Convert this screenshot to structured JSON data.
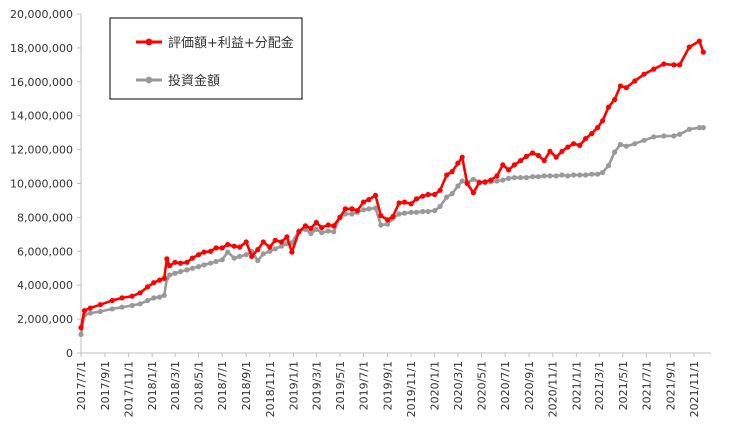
{
  "chart_data": {
    "type": "line",
    "title": "",
    "xlabel": "",
    "ylabel": "",
    "ylim": [
      0,
      20000000
    ],
    "yticks": [
      0,
      2000000,
      4000000,
      6000000,
      8000000,
      10000000,
      12000000,
      14000000,
      16000000,
      18000000,
      20000000
    ],
    "ytick_labels": [
      "0",
      "2,000,000",
      "4,000,000",
      "6,000,000",
      "8,000,000",
      "10,000,000",
      "12,000,000",
      "14,000,000",
      "16,000,000",
      "18,000,000",
      "20,000,000"
    ],
    "x_start": "2017/7/1",
    "x_end": "2021/12/15",
    "xticks": [
      "2017/7/1",
      "2017/9/1",
      "2017/11/1",
      "2018/1/1",
      "2018/3/1",
      "2018/5/1",
      "2018/7/1",
      "2018/9/1",
      "2018/11/1",
      "2019/1/1",
      "2019/3/1",
      "2019/5/1",
      "2019/7/1",
      "2019/9/1",
      "2019/11/1",
      "2020/1/1",
      "2020/3/1",
      "2020/5/1",
      "2020/7/1",
      "2020/9/1",
      "2020/11/1",
      "2021/1/1",
      "2021/3/1",
      "2021/5/1",
      "2021/7/1",
      "2021/9/1",
      "2021/11/1"
    ],
    "grid": false,
    "legend_position": "top-left",
    "series": [
      {
        "name": "評価額+利益+分配金",
        "color": "#ff0000",
        "points": [
          [
            "2017/7/1",
            1500000
          ],
          [
            "2017/7/10",
            2500000
          ],
          [
            "2017/7/25",
            2650000
          ],
          [
            "2017/8/20",
            2850000
          ],
          [
            "2017/9/20",
            3100000
          ],
          [
            "2017/10/15",
            3250000
          ],
          [
            "2017/11/10",
            3350000
          ],
          [
            "2017/12/1",
            3550000
          ],
          [
            "2017/12/20",
            3900000
          ],
          [
            "2018/1/5",
            4150000
          ],
          [
            "2018/1/20",
            4300000
          ],
          [
            "2018/2/1",
            4400000
          ],
          [
            "2018/2/8",
            5550000
          ],
          [
            "2018/2/15",
            5150000
          ],
          [
            "2018/3/1",
            5350000
          ],
          [
            "2018/3/15",
            5300000
          ],
          [
            "2018/4/1",
            5350000
          ],
          [
            "2018/4/15",
            5600000
          ],
          [
            "2018/5/1",
            5800000
          ],
          [
            "2018/5/15",
            5950000
          ],
          [
            "2018/6/1",
            6000000
          ],
          [
            "2018/6/15",
            6200000
          ],
          [
            "2018/7/1",
            6200000
          ],
          [
            "2018/7/15",
            6400000
          ],
          [
            "2018/8/1",
            6300000
          ],
          [
            "2018/8/15",
            6250000
          ],
          [
            "2018/9/1",
            6550000
          ],
          [
            "2018/9/15",
            5700000
          ],
          [
            "2018/10/1",
            6100000
          ],
          [
            "2018/10/15",
            6550000
          ],
          [
            "2018/11/1",
            6250000
          ],
          [
            "2018/11/15",
            6650000
          ],
          [
            "2018/12/1",
            6550000
          ],
          [
            "2018/12/15",
            6850000
          ],
          [
            "2018/12/28",
            5950000
          ],
          [
            "2019/1/15",
            7150000
          ],
          [
            "2019/2/1",
            7500000
          ],
          [
            "2019/2/15",
            7350000
          ],
          [
            "2019/3/1",
            7700000
          ],
          [
            "2019/3/15",
            7400000
          ],
          [
            "2019/4/1",
            7550000
          ],
          [
            "2019/4/15",
            7500000
          ],
          [
            "2019/5/1",
            8000000
          ],
          [
            "2019/5/15",
            8500000
          ],
          [
            "2019/6/1",
            8500000
          ],
          [
            "2019/6/15",
            8400000
          ],
          [
            "2019/7/1",
            8900000
          ],
          [
            "2019/7/15",
            9050000
          ],
          [
            "2019/8/1",
            9300000
          ],
          [
            "2019/8/15",
            8100000
          ],
          [
            "2019/9/1",
            7850000
          ],
          [
            "2019/9/15",
            8050000
          ],
          [
            "2019/10/1",
            8850000
          ],
          [
            "2019/10/15",
            8900000
          ],
          [
            "2019/11/1",
            8800000
          ],
          [
            "2019/11/15",
            9100000
          ],
          [
            "2019/12/1",
            9250000
          ],
          [
            "2019/12/15",
            9350000
          ],
          [
            "2020/1/1",
            9350000
          ],
          [
            "2020/1/15",
            9600000
          ],
          [
            "2020/2/1",
            10500000
          ],
          [
            "2020/2/15",
            10700000
          ],
          [
            "2020/3/1",
            11200000
          ],
          [
            "2020/3/12",
            11550000
          ],
          [
            "2020/3/25",
            10000000
          ],
          [
            "2020/4/10",
            9450000
          ],
          [
            "2020/4/25",
            10050000
          ],
          [
            "2020/5/10",
            10100000
          ],
          [
            "2020/5/25",
            10200000
          ],
          [
            "2020/6/10",
            10450000
          ],
          [
            "2020/6/25",
            11100000
          ],
          [
            "2020/7/10",
            10800000
          ],
          [
            "2020/7/25",
            11100000
          ],
          [
            "2020/8/10",
            11350000
          ],
          [
            "2020/8/25",
            11600000
          ],
          [
            "2020/9/10",
            11800000
          ],
          [
            "2020/9/25",
            11650000
          ],
          [
            "2020/10/10",
            11350000
          ],
          [
            "2020/10/25",
            11900000
          ],
          [
            "2020/11/10",
            11550000
          ],
          [
            "2020/11/25",
            11900000
          ],
          [
            "2020/12/10",
            12150000
          ],
          [
            "2020/12/25",
            12350000
          ],
          [
            "2021/1/10",
            12250000
          ],
          [
            "2021/1/25",
            12650000
          ],
          [
            "2021/2/10",
            12950000
          ],
          [
            "2021/2/25",
            13300000
          ],
          [
            "2021/3/10",
            13700000
          ],
          [
            "2021/3/25",
            14500000
          ],
          [
            "2021/4/10",
            14950000
          ],
          [
            "2021/4/25",
            15750000
          ],
          [
            "2021/5/10",
            15650000
          ],
          [
            "2021/6/1",
            16050000
          ],
          [
            "2021/6/25",
            16450000
          ],
          [
            "2021/7/20",
            16750000
          ],
          [
            "2021/8/15",
            17050000
          ],
          [
            "2021/9/10",
            17000000
          ],
          [
            "2021/9/25",
            17000000
          ],
          [
            "2021/10/20",
            18050000
          ],
          [
            "2021/11/15",
            18400000
          ],
          [
            "2021/11/25",
            17750000
          ]
        ]
      },
      {
        "name": "投資金額",
        "color": "#999999",
        "points": [
          [
            "2017/7/1",
            1100000
          ],
          [
            "2017/7/10",
            2250000
          ],
          [
            "2017/7/25",
            2350000
          ],
          [
            "2017/8/20",
            2450000
          ],
          [
            "2017/9/20",
            2600000
          ],
          [
            "2017/10/15",
            2700000
          ],
          [
            "2017/11/10",
            2800000
          ],
          [
            "2017/12/1",
            2900000
          ],
          [
            "2017/12/20",
            3100000
          ],
          [
            "2018/1/5",
            3250000
          ],
          [
            "2018/1/20",
            3300000
          ],
          [
            "2018/2/1",
            3400000
          ],
          [
            "2018/2/8",
            4400000
          ],
          [
            "2018/2/15",
            4600000
          ],
          [
            "2018/3/1",
            4700000
          ],
          [
            "2018/3/15",
            4800000
          ],
          [
            "2018/4/1",
            4900000
          ],
          [
            "2018/4/15",
            5000000
          ],
          [
            "2018/5/1",
            5100000
          ],
          [
            "2018/5/15",
            5200000
          ],
          [
            "2018/6/1",
            5300000
          ],
          [
            "2018/6/15",
            5400000
          ],
          [
            "2018/7/1",
            5500000
          ],
          [
            "2018/7/15",
            5950000
          ],
          [
            "2018/8/1",
            5600000
          ],
          [
            "2018/8/15",
            5700000
          ],
          [
            "2018/9/1",
            5800000
          ],
          [
            "2018/9/15",
            6000000
          ],
          [
            "2018/10/1",
            5450000
          ],
          [
            "2018/10/15",
            5850000
          ],
          [
            "2018/11/1",
            6000000
          ],
          [
            "2018/11/15",
            6150000
          ],
          [
            "2018/12/1",
            6300000
          ],
          [
            "2018/12/15",
            6450000
          ],
          [
            "2018/12/28",
            6500000
          ],
          [
            "2019/1/15",
            7200000
          ],
          [
            "2019/2/1",
            7300000
          ],
          [
            "2019/2/15",
            7050000
          ],
          [
            "2019/3/1",
            7300000
          ],
          [
            "2019/3/15",
            7100000
          ],
          [
            "2019/4/1",
            7200000
          ],
          [
            "2019/4/15",
            7150000
          ],
          [
            "2019/5/1",
            8000000
          ],
          [
            "2019/5/15",
            8200000
          ],
          [
            "2019/6/1",
            8200000
          ],
          [
            "2019/6/15",
            8300000
          ],
          [
            "2019/7/1",
            8450000
          ],
          [
            "2019/7/15",
            8500000
          ],
          [
            "2019/8/1",
            8550000
          ],
          [
            "2019/8/15",
            7550000
          ],
          [
            "2019/9/1",
            7600000
          ],
          [
            "2019/9/15",
            7950000
          ],
          [
            "2019/10/1",
            8200000
          ],
          [
            "2019/10/15",
            8250000
          ],
          [
            "2019/11/1",
            8300000
          ],
          [
            "2019/11/15",
            8300000
          ],
          [
            "2019/12/1",
            8350000
          ],
          [
            "2019/12/15",
            8350000
          ],
          [
            "2020/1/1",
            8400000
          ],
          [
            "2020/1/15",
            8650000
          ],
          [
            "2020/2/1",
            9200000
          ],
          [
            "2020/2/15",
            9400000
          ],
          [
            "2020/3/1",
            9850000
          ],
          [
            "2020/3/12",
            10150000
          ],
          [
            "2020/3/25",
            10050000
          ],
          [
            "2020/4/10",
            10250000
          ],
          [
            "2020/4/25",
            10100000
          ],
          [
            "2020/5/10",
            10050000
          ],
          [
            "2020/5/25",
            10100000
          ],
          [
            "2020/6/10",
            10150000
          ],
          [
            "2020/6/25",
            10200000
          ],
          [
            "2020/7/10",
            10300000
          ],
          [
            "2020/7/25",
            10350000
          ],
          [
            "2020/8/10",
            10350000
          ],
          [
            "2020/8/25",
            10350000
          ],
          [
            "2020/9/10",
            10400000
          ],
          [
            "2020/9/25",
            10400000
          ],
          [
            "2020/10/10",
            10450000
          ],
          [
            "2020/10/25",
            10450000
          ],
          [
            "2020/11/10",
            10450000
          ],
          [
            "2020/11/25",
            10500000
          ],
          [
            "2020/12/10",
            10450000
          ],
          [
            "2020/12/25",
            10500000
          ],
          [
            "2021/1/10",
            10500000
          ],
          [
            "2021/1/25",
            10500000
          ],
          [
            "2021/2/10",
            10550000
          ],
          [
            "2021/2/25",
            10550000
          ],
          [
            "2021/3/10",
            10650000
          ],
          [
            "2021/3/25",
            11050000
          ],
          [
            "2021/4/10",
            11850000
          ],
          [
            "2021/4/25",
            12300000
          ],
          [
            "2021/5/10",
            12200000
          ],
          [
            "2021/6/1",
            12350000
          ],
          [
            "2021/6/25",
            12550000
          ],
          [
            "2021/7/20",
            12750000
          ],
          [
            "2021/8/15",
            12800000
          ],
          [
            "2021/9/10",
            12800000
          ],
          [
            "2021/9/25",
            12900000
          ],
          [
            "2021/10/20",
            13200000
          ],
          [
            "2021/11/15",
            13300000
          ],
          [
            "2021/11/25",
            13300000
          ]
        ]
      }
    ]
  }
}
